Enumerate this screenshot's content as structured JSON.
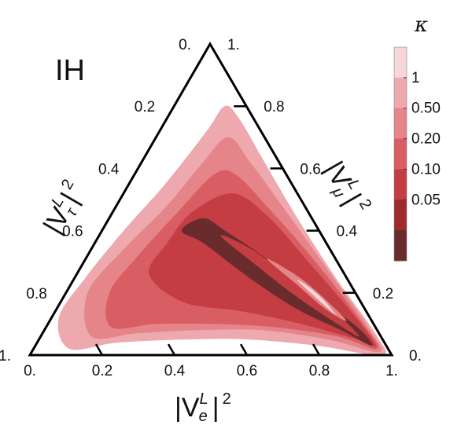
{
  "chart_data": {
    "type": "ternary",
    "panel_label": "IH",
    "axes": {
      "bottom": {
        "title_base": "|V",
        "title_sup": "L",
        "title_sub": "e",
        "title_end": "|",
        "title_pow": "2",
        "ticks": [
          "0.",
          "0.2",
          "0.4",
          "0.6",
          "0.8",
          "1."
        ],
        "tick_values": [
          0,
          0.2,
          0.4,
          0.6,
          0.8,
          1.0
        ]
      },
      "right": {
        "title_base": "|V",
        "title_sup": "L",
        "title_sub": "μ",
        "title_end": "|",
        "title_pow": "2",
        "ticks": [
          "0.",
          "0.2",
          "0.4",
          "0.6",
          "0.8",
          "1."
        ],
        "tick_values": [
          0,
          0.2,
          0.4,
          0.6,
          0.8,
          1.0
        ]
      },
      "left": {
        "title_base": "|V",
        "title_sup": "L",
        "title_sub": "τ",
        "title_end": "|",
        "title_pow": "2",
        "ticks": [
          "0.",
          "0.2",
          "0.4",
          "0.6",
          "0.8",
          "1."
        ],
        "tick_values": [
          0,
          0.2,
          0.4,
          0.6,
          0.8,
          1.0
        ]
      }
    },
    "colorbar": {
      "title": "κ",
      "tick_labels": [
        "1",
        "0.50",
        "0.20",
        "0.10",
        "0.05"
      ],
      "levels": [
        {
          "upper": "",
          "color": "#f6d6d8"
        },
        {
          "upper": "1",
          "color": "#eda9ae"
        },
        {
          "upper": "0.50",
          "color": "#e58489"
        },
        {
          "upper": "0.20",
          "color": "#d95e64"
        },
        {
          "upper": "0.10",
          "color": "#c43d43"
        },
        {
          "upper": "0.05",
          "color": "#9e2a2e"
        },
        {
          "upper": "",
          "color": "#6a2b2d"
        }
      ]
    },
    "regions": [
      {
        "level": 1,
        "color": "#eda9ae",
        "points": [
          [
            0.1,
            0.02,
            0.88
          ],
          [
            0.22,
            0.04,
            0.74
          ],
          [
            0.4,
            0.05,
            0.55
          ],
          [
            0.58,
            0.05,
            0.37
          ],
          [
            0.78,
            0.03,
            0.19
          ],
          [
            0.97,
            0.0,
            0.03
          ],
          [
            0.93,
            0.06,
            0.01
          ],
          [
            0.72,
            0.25,
            0.03
          ],
          [
            0.52,
            0.44,
            0.04
          ],
          [
            0.33,
            0.63,
            0.04
          ],
          [
            0.2,
            0.76,
            0.04
          ],
          [
            0.14,
            0.8,
            0.06
          ],
          [
            0.13,
            0.72,
            0.15
          ],
          [
            0.1,
            0.55,
            0.35
          ],
          [
            0.06,
            0.4,
            0.54
          ],
          [
            0.03,
            0.25,
            0.72
          ],
          [
            0.02,
            0.12,
            0.86
          ]
        ]
      },
      {
        "level": 2,
        "color": "#e58489",
        "points": [
          [
            0.14,
            0.06,
            0.8
          ],
          [
            0.26,
            0.07,
            0.67
          ],
          [
            0.42,
            0.08,
            0.5
          ],
          [
            0.6,
            0.08,
            0.32
          ],
          [
            0.8,
            0.05,
            0.15
          ],
          [
            0.96,
            0.01,
            0.03
          ],
          [
            0.9,
            0.08,
            0.02
          ],
          [
            0.68,
            0.28,
            0.04
          ],
          [
            0.48,
            0.46,
            0.06
          ],
          [
            0.3,
            0.62,
            0.08
          ],
          [
            0.2,
            0.7,
            0.1
          ],
          [
            0.17,
            0.62,
            0.21
          ],
          [
            0.14,
            0.48,
            0.38
          ],
          [
            0.09,
            0.34,
            0.57
          ],
          [
            0.06,
            0.2,
            0.74
          ]
        ]
      },
      {
        "level": 3,
        "color": "#d95e64",
        "points": [
          [
            0.18,
            0.09,
            0.73
          ],
          [
            0.3,
            0.1,
            0.6
          ],
          [
            0.46,
            0.1,
            0.44
          ],
          [
            0.63,
            0.09,
            0.28
          ],
          [
            0.82,
            0.06,
            0.12
          ],
          [
            0.95,
            0.02,
            0.03
          ],
          [
            0.86,
            0.11,
            0.03
          ],
          [
            0.64,
            0.3,
            0.06
          ],
          [
            0.44,
            0.46,
            0.1
          ],
          [
            0.28,
            0.58,
            0.14
          ],
          [
            0.22,
            0.58,
            0.2
          ],
          [
            0.18,
            0.46,
            0.36
          ],
          [
            0.14,
            0.32,
            0.54
          ],
          [
            0.12,
            0.2,
            0.68
          ]
        ]
      },
      {
        "level": 4,
        "color": "#c43d43",
        "points": [
          [
            0.2,
            0.26,
            0.54
          ],
          [
            0.34,
            0.17,
            0.49
          ],
          [
            0.52,
            0.14,
            0.34
          ],
          [
            0.7,
            0.1,
            0.2
          ],
          [
            0.88,
            0.05,
            0.07
          ],
          [
            0.94,
            0.03,
            0.03
          ],
          [
            0.83,
            0.13,
            0.04
          ],
          [
            0.62,
            0.3,
            0.08
          ],
          [
            0.43,
            0.45,
            0.12
          ],
          [
            0.3,
            0.52,
            0.18
          ],
          [
            0.22,
            0.46,
            0.32
          ],
          [
            0.2,
            0.36,
            0.44
          ]
        ]
      },
      {
        "level": 6,
        "color": "#6a2b2d",
        "points": [
          [
            0.22,
            0.4,
            0.38
          ],
          [
            0.3,
            0.36,
            0.34
          ],
          [
            0.48,
            0.25,
            0.27
          ],
          [
            0.66,
            0.15,
            0.19
          ],
          [
            0.82,
            0.08,
            0.1
          ],
          [
            0.93,
            0.03,
            0.04
          ],
          [
            0.86,
            0.09,
            0.05
          ],
          [
            0.68,
            0.2,
            0.12
          ],
          [
            0.5,
            0.31,
            0.19
          ],
          [
            0.34,
            0.4,
            0.26
          ],
          [
            0.26,
            0.44,
            0.3
          ]
        ]
      },
      {
        "level": 4,
        "color": "#c43d43",
        "points": [
          [
            0.34,
            0.38,
            0.28
          ],
          [
            0.48,
            0.29,
            0.23
          ],
          [
            0.64,
            0.19,
            0.17
          ],
          [
            0.8,
            0.1,
            0.1
          ],
          [
            0.88,
            0.06,
            0.06
          ],
          [
            0.8,
            0.12,
            0.08
          ],
          [
            0.64,
            0.22,
            0.14
          ],
          [
            0.48,
            0.32,
            0.2
          ],
          [
            0.38,
            0.37,
            0.25
          ]
        ]
      },
      {
        "level": 2,
        "color": "#e58489",
        "points": [
          [
            0.5,
            0.31,
            0.19
          ],
          [
            0.62,
            0.23,
            0.15
          ],
          [
            0.74,
            0.15,
            0.11
          ],
          [
            0.82,
            0.11,
            0.07
          ],
          [
            0.74,
            0.17,
            0.09
          ],
          [
            0.62,
            0.25,
            0.13
          ]
        ]
      },
      {
        "level": 0,
        "color": "#f6d6d8",
        "points": [
          [
            0.62,
            0.24,
            0.14
          ],
          [
            0.72,
            0.17,
            0.11
          ],
          [
            0.78,
            0.13,
            0.09
          ],
          [
            0.72,
            0.18,
            0.1
          ],
          [
            0.66,
            0.22,
            0.12
          ]
        ]
      }
    ]
  }
}
